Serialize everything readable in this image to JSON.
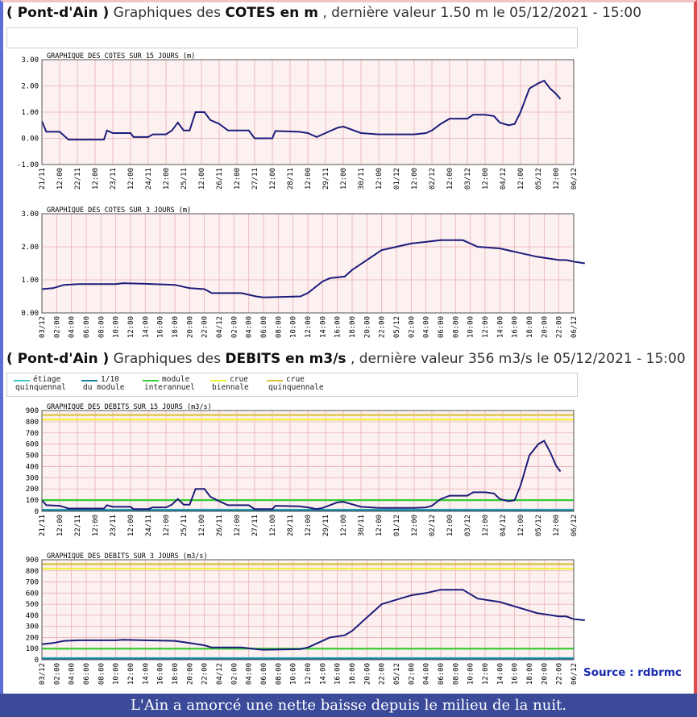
{
  "header_cotes": {
    "station": "( Pont-d'Ain )",
    "text1": "Graphiques des",
    "strong": "COTES en m",
    "text2": ", dernière valeur 1.50 m le 05/12/2021 - 15:00"
  },
  "header_debits": {
    "station": "( Pont-d'Ain )",
    "text1": "Graphiques des",
    "strong": "DEBITS en m3/s",
    "text2": ", dernière valeur 356 m3/s le 05/12/2021 - 15:00"
  },
  "legend": [
    {
      "line1": "étiage",
      "line2": "quinquennal",
      "color": "#3fc9c9"
    },
    {
      "line1": "1/10",
      "line2": "du module",
      "color": "#1a7fa0"
    },
    {
      "line1": "module",
      "line2": "interannuel",
      "color": "#33cc33"
    },
    {
      "line1": "crue",
      "line2": "biennale",
      "color": "#f2f23a"
    },
    {
      "line1": "crue",
      "line2": "quinquennale",
      "color": "#d9c23a"
    }
  ],
  "source": "Source : rdbrmc",
  "caption": "L'Ain a amorcé une nette baisse depuis le milieu de la nuit.",
  "colors": {
    "series": "#1c1c7a",
    "plot_bg": "#fdf0f0",
    "grid": "#e8b0b0"
  },
  "chart_data": [
    {
      "type": "line",
      "title": "GRAPHIQUE DES COTES SUR 15 JOURS (m)",
      "ylim": [
        -1,
        3
      ],
      "yticks": [
        "3.00",
        "2.00",
        "1.00",
        "0.00",
        "-1.00"
      ],
      "xticks": [
        "21/11",
        "12:00",
        "22/11",
        "12:00",
        "23/11",
        "12:00",
        "24/11",
        "12:00",
        "25/11",
        "12:00",
        "26/11",
        "12:00",
        "27/11",
        "12:00",
        "28/11",
        "12:00",
        "29/11",
        "12:00",
        "30/11",
        "12:00",
        "01/12",
        "12:00",
        "02/12",
        "12:00",
        "03/12",
        "12:00",
        "04/12",
        "12:00",
        "05/12",
        "12:00",
        "06/12"
      ],
      "x_unit": "hours since 21/11 00:00",
      "series": [
        {
          "points": [
            [
              0,
              0.65
            ],
            [
              3,
              0.25
            ],
            [
              12,
              0.25
            ],
            [
              18,
              -0.05
            ],
            [
              42,
              -0.05
            ],
            [
              44,
              0.3
            ],
            [
              48,
              0.2
            ],
            [
              60,
              0.2
            ],
            [
              62,
              0.05
            ],
            [
              72,
              0.05
            ],
            [
              75,
              0.15
            ],
            [
              84,
              0.15
            ],
            [
              88,
              0.3
            ],
            [
              92,
              0.6
            ],
            [
              96,
              0.3
            ],
            [
              100,
              0.3
            ],
            [
              104,
              1.0
            ],
            [
              110,
              1.0
            ],
            [
              114,
              0.7
            ],
            [
              120,
              0.55
            ],
            [
              126,
              0.3
            ],
            [
              140,
              0.3
            ],
            [
              144,
              0.0
            ],
            [
              156,
              0.0
            ],
            [
              158,
              0.28
            ],
            [
              174,
              0.25
            ],
            [
              180,
              0.2
            ],
            [
              186,
              0.05
            ],
            [
              190,
              0.15
            ],
            [
              200,
              0.4
            ],
            [
              204,
              0.45
            ],
            [
              216,
              0.2
            ],
            [
              228,
              0.15
            ],
            [
              240,
              0.15
            ],
            [
              252,
              0.15
            ],
            [
              260,
              0.2
            ],
            [
              264,
              0.3
            ],
            [
              270,
              0.55
            ],
            [
              276,
              0.75
            ],
            [
              288,
              0.75
            ],
            [
              292,
              0.9
            ],
            [
              300,
              0.9
            ],
            [
              306,
              0.85
            ],
            [
              310,
              0.6
            ],
            [
              316,
              0.5
            ],
            [
              320,
              0.55
            ],
            [
              324,
              1.0
            ],
            [
              330,
              1.9
            ],
            [
              336,
              2.1
            ],
            [
              340,
              2.2
            ],
            [
              344,
              1.9
            ],
            [
              348,
              1.7
            ],
            [
              351,
              1.5
            ]
          ]
        }
      ]
    },
    {
      "type": "line",
      "title": "GRAPHIQUE DES COTES SUR 3 JOURS (m)",
      "ylim": [
        0,
        3
      ],
      "yticks": [
        "3.00",
        "2.00",
        "1.00",
        "0.00"
      ],
      "xticks": [
        "03/12",
        "02:00",
        "04:00",
        "06:00",
        "08:00",
        "10:00",
        "12:00",
        "14:00",
        "16:00",
        "18:00",
        "20:00",
        "22:00",
        "04/12",
        "02:00",
        "04:00",
        "06:00",
        "08:00",
        "10:00",
        "12:00",
        "14:00",
        "16:00",
        "18:00",
        "20:00",
        "22:00",
        "05/12",
        "02:00",
        "04:00",
        "06:00",
        "08:00",
        "10:00",
        "12:00",
        "14:00",
        "16:00",
        "18:00",
        "20:00",
        "22:00",
        "06/12"
      ],
      "x_unit": "hours since 03/12 00:00",
      "series": [
        {
          "points": [
            [
              0,
              0.72
            ],
            [
              3,
              0.75
            ],
            [
              6,
              0.85
            ],
            [
              10,
              0.87
            ],
            [
              20,
              0.87
            ],
            [
              22,
              0.9
            ],
            [
              28,
              0.88
            ],
            [
              36,
              0.85
            ],
            [
              40,
              0.75
            ],
            [
              44,
              0.72
            ],
            [
              46,
              0.6
            ],
            [
              54,
              0.6
            ],
            [
              58,
              0.5
            ],
            [
              60,
              0.47
            ],
            [
              70,
              0.5
            ],
            [
              72,
              0.6
            ],
            [
              76,
              0.95
            ],
            [
              78,
              1.05
            ],
            [
              82,
              1.1
            ],
            [
              84,
              1.3
            ],
            [
              88,
              1.6
            ],
            [
              92,
              1.9
            ],
            [
              96,
              2.0
            ],
            [
              100,
              2.1
            ],
            [
              104,
              2.15
            ],
            [
              108,
              2.2
            ],
            [
              114,
              2.2
            ],
            [
              118,
              2.0
            ],
            [
              124,
              1.95
            ],
            [
              130,
              1.8
            ],
            [
              134,
              1.7
            ],
            [
              140,
              1.6
            ],
            [
              142,
              1.6
            ],
            [
              144,
              1.55
            ],
            [
              147,
              1.5
            ]
          ]
        }
      ]
    },
    {
      "type": "line",
      "title": "GRAPHIQUE DES DEBITS SUR 15 JOURS (m3/s)",
      "ylim": [
        0,
        900
      ],
      "yticks": [
        "900",
        "800",
        "700",
        "600",
        "500",
        "400",
        "300",
        "200",
        "100",
        "0"
      ],
      "xticks": [
        "21/11",
        "12:00",
        "22/11",
        "12:00",
        "23/11",
        "12:00",
        "24/11",
        "12:00",
        "25/11",
        "12:00",
        "26/11",
        "12:00",
        "27/11",
        "12:00",
        "28/11",
        "12:00",
        "29/11",
        "12:00",
        "30/11",
        "12:00",
        "01/12",
        "12:00",
        "02/12",
        "12:00",
        "03/12",
        "12:00",
        "04/12",
        "12:00",
        "05/12",
        "12:00",
        "06/12"
      ],
      "x_unit": "hours since 21/11 00:00",
      "reference_lines": [
        {
          "name": "étiage quinquennal",
          "value": 15,
          "color": "#3fc9c9"
        },
        {
          "name": "1/10 du module",
          "value": 10,
          "color": "#1a7fa0"
        },
        {
          "name": "module interannuel",
          "value": 100,
          "color": "#33cc33"
        },
        {
          "name": "crue biennale",
          "value": 820,
          "color": "#f2f23a"
        },
        {
          "name": "crue quinquennale",
          "value": 860,
          "color": "#d9c23a"
        }
      ],
      "series": [
        {
          "points": [
            [
              0,
              100
            ],
            [
              3,
              55
            ],
            [
              12,
              50
            ],
            [
              18,
              25
            ],
            [
              42,
              25
            ],
            [
              44,
              55
            ],
            [
              48,
              40
            ],
            [
              60,
              40
            ],
            [
              62,
              20
            ],
            [
              72,
              20
            ],
            [
              75,
              35
            ],
            [
              84,
              35
            ],
            [
              88,
              60
            ],
            [
              92,
              110
            ],
            [
              96,
              60
            ],
            [
              100,
              60
            ],
            [
              104,
              200
            ],
            [
              110,
              200
            ],
            [
              114,
              130
            ],
            [
              120,
              90
            ],
            [
              126,
              55
            ],
            [
              140,
              55
            ],
            [
              144,
              20
            ],
            [
              156,
              20
            ],
            [
              158,
              50
            ],
            [
              174,
              45
            ],
            [
              180,
              35
            ],
            [
              186,
              20
            ],
            [
              190,
              30
            ],
            [
              200,
              80
            ],
            [
              204,
              85
            ],
            [
              216,
              40
            ],
            [
              228,
              30
            ],
            [
              240,
              30
            ],
            [
              252,
              30
            ],
            [
              260,
              35
            ],
            [
              264,
              50
            ],
            [
              270,
              110
            ],
            [
              276,
              140
            ],
            [
              288,
              140
            ],
            [
              292,
              170
            ],
            [
              300,
              170
            ],
            [
              306,
              160
            ],
            [
              310,
              110
            ],
            [
              316,
              90
            ],
            [
              320,
              100
            ],
            [
              324,
              230
            ],
            [
              330,
              500
            ],
            [
              336,
              600
            ],
            [
              340,
              630
            ],
            [
              344,
              530
            ],
            [
              348,
              410
            ],
            [
              351,
              356
            ]
          ]
        }
      ]
    },
    {
      "type": "line",
      "title": "GRAPHIQUE DES DEBITS SUR 3 JOURS (m3/s)",
      "ylim": [
        0,
        900
      ],
      "yticks": [
        "900",
        "800",
        "700",
        "600",
        "500",
        "400",
        "300",
        "200",
        "100",
        "0"
      ],
      "xticks": [
        "03/12",
        "02:00",
        "04:00",
        "06:00",
        "08:00",
        "10:00",
        "12:00",
        "14:00",
        "16:00",
        "18:00",
        "20:00",
        "22:00",
        "04/12",
        "02:00",
        "04:00",
        "06:00",
        "08:00",
        "10:00",
        "12:00",
        "14:00",
        "16:00",
        "18:00",
        "20:00",
        "22:00",
        "05/12",
        "02:00",
        "04:00",
        "06:00",
        "08:00",
        "10:00",
        "12:00",
        "14:00",
        "16:00",
        "18:00",
        "20:00",
        "22:00",
        "06/12"
      ],
      "x_unit": "hours since 03/12 00:00",
      "reference_lines": [
        {
          "name": "étiage quinquennal",
          "value": 15,
          "color": "#3fc9c9"
        },
        {
          "name": "1/10 du module",
          "value": 10,
          "color": "#1a7fa0"
        },
        {
          "name": "module interannuel",
          "value": 100,
          "color": "#33cc33"
        },
        {
          "name": "crue biennale",
          "value": 820,
          "color": "#f2f23a"
        },
        {
          "name": "crue quinquennale",
          "value": 860,
          "color": "#d9c23a"
        }
      ],
      "series": [
        {
          "points": [
            [
              0,
              140
            ],
            [
              3,
              150
            ],
            [
              6,
              170
            ],
            [
              10,
              175
            ],
            [
              20,
              175
            ],
            [
              22,
              180
            ],
            [
              28,
              175
            ],
            [
              36,
              170
            ],
            [
              40,
              150
            ],
            [
              44,
              130
            ],
            [
              46,
              110
            ],
            [
              54,
              110
            ],
            [
              58,
              95
            ],
            [
              60,
              90
            ],
            [
              70,
              95
            ],
            [
              72,
              110
            ],
            [
              76,
              170
            ],
            [
              78,
              200
            ],
            [
              82,
              220
            ],
            [
              84,
              260
            ],
            [
              88,
              380
            ],
            [
              92,
              500
            ],
            [
              96,
              540
            ],
            [
              100,
              580
            ],
            [
              104,
              600
            ],
            [
              108,
              630
            ],
            [
              114,
              630
            ],
            [
              118,
              550
            ],
            [
              124,
              520
            ],
            [
              130,
              460
            ],
            [
              134,
              420
            ],
            [
              140,
              390
            ],
            [
              142,
              390
            ],
            [
              144,
              365
            ],
            [
              147,
              356
            ]
          ]
        }
      ]
    }
  ]
}
